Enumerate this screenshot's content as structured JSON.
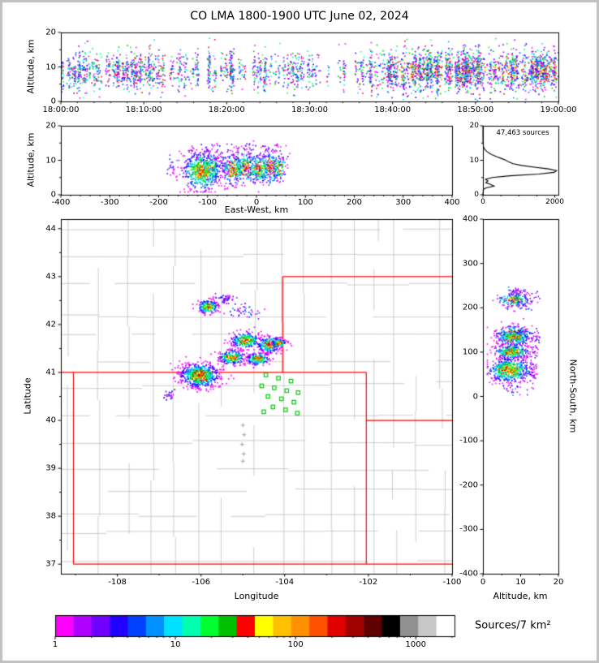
{
  "title": "CO LMA 1800-1900 UTC June 02, 2024",
  "render_seed": 42,
  "grid_seed": 7,
  "colors": {
    "background": "#ffffff",
    "frame_border": "#c0c0c0",
    "axis": "#000000",
    "county_line": "#b8b8b8",
    "state_line": "#ff0000",
    "station": "#00cc00",
    "marker": "#999999",
    "histogram_line": "#000000"
  },
  "colorbar": {
    "label": "Sources/7 km²",
    "tick_labels": [
      "1",
      "10",
      "100",
      "1000"
    ],
    "scale": "log",
    "range": [
      1,
      2100
    ],
    "colors": [
      "#ff00ff",
      "#b000ff",
      "#7000ff",
      "#2000ff",
      "#0040ff",
      "#0090ff",
      "#00e0ff",
      "#00ffb0",
      "#00ff30",
      "#00c000",
      "#ff0000",
      "#ffff00",
      "#ffc000",
      "#ff9000",
      "#ff5000",
      "#e00000",
      "#a00000",
      "#600000",
      "#000000",
      "#909090",
      "#c8c8c8",
      "#ffffff"
    ]
  },
  "chart_data": [
    {
      "id": "time_altitude",
      "type": "scatter",
      "ylabel": "Altitude, km",
      "x_tick_labels": [
        "18:00:00",
        "18:10:00",
        "18:20:00",
        "18:30:00",
        "18:40:00",
        "18:50:00",
        "19:00:00"
      ],
      "x_range_seconds": [
        0,
        3600
      ],
      "y_range": [
        0,
        20
      ],
      "y_tick_values": [
        0,
        10,
        20
      ],
      "y_tick_labels": [
        "0",
        "10",
        "20"
      ],
      "alt_mean_km": 9,
      "alt_spread_km": 2.6,
      "time_density": [
        [
          0,
          0.75
        ],
        [
          300,
          0.65
        ],
        [
          600,
          0.7
        ],
        [
          900,
          0.55
        ],
        [
          1200,
          0.6
        ],
        [
          1500,
          0.5
        ],
        [
          1800,
          0.45
        ],
        [
          2000,
          0.3
        ],
        [
          2200,
          0.55
        ],
        [
          2500,
          0.85
        ],
        [
          2800,
          1.0
        ],
        [
          3600,
          1.0
        ]
      ]
    },
    {
      "id": "eastwest_altitude",
      "type": "scatter",
      "xlabel": "East-West, km",
      "ylabel": "Altitude, km",
      "x_range": [
        -400,
        400
      ],
      "x_tick_values": [
        -400,
        -300,
        -200,
        -100,
        0,
        100,
        200,
        300,
        400
      ],
      "x_tick_labels": [
        "-400",
        "-300",
        "-200",
        "-100",
        "0",
        "100",
        "200",
        "300",
        "400"
      ],
      "y_range": [
        0,
        20
      ],
      "y_tick_values": [
        0,
        10,
        20
      ],
      "y_tick_labels": [
        "0",
        "10",
        "20"
      ]
    },
    {
      "id": "altitude_histogram",
      "type": "line",
      "annotation": "47,463 sources",
      "x_range": [
        0,
        2100
      ],
      "x_tick_values": [
        0,
        2000
      ],
      "x_tick_labels": [
        "0",
        "2000"
      ],
      "y_range": [
        0,
        20
      ],
      "y_tick_values": [
        0,
        10,
        20
      ],
      "y_tick_labels": [
        "0",
        "10",
        "20"
      ],
      "profile_alt_count": [
        [
          0,
          0
        ],
        [
          1.5,
          10
        ],
        [
          2,
          90
        ],
        [
          2.5,
          310
        ],
        [
          3,
          210
        ],
        [
          3.5,
          80
        ],
        [
          4,
          140
        ],
        [
          4.5,
          70
        ],
        [
          5,
          260
        ],
        [
          5.5,
          750
        ],
        [
          6,
          1550
        ],
        [
          6.5,
          1980
        ],
        [
          7,
          2050
        ],
        [
          7.5,
          1820
        ],
        [
          8,
          1430
        ],
        [
          8.5,
          1080
        ],
        [
          9,
          840
        ],
        [
          9.5,
          720
        ],
        [
          10,
          640
        ],
        [
          10.5,
          520
        ],
        [
          11,
          390
        ],
        [
          11.5,
          270
        ],
        [
          12,
          185
        ],
        [
          12.5,
          115
        ],
        [
          13,
          62
        ],
        [
          13.5,
          30
        ],
        [
          14,
          13
        ],
        [
          15,
          4
        ],
        [
          16,
          1
        ],
        [
          20,
          0
        ]
      ]
    },
    {
      "id": "map",
      "type": "scatter",
      "xlabel": "Longitude",
      "ylabel": "Latitude",
      "lon_range": [
        -109.35,
        -100
      ],
      "lat_range": [
        36.8,
        44.2
      ],
      "x_tick_values": [
        -108,
        -106,
        -104,
        -102,
        -100
      ],
      "x_tick_labels": [
        "-108",
        "-106",
        "-104",
        "-102",
        "-100"
      ],
      "y_tick_values": [
        37,
        38,
        39,
        40,
        41,
        42,
        43,
        44
      ],
      "y_tick_labels": [
        "37",
        "38",
        "39",
        "40",
        "41",
        "42",
        "43",
        "44"
      ],
      "projection_center": {
        "lon": -104.7,
        "lat": 40.4
      },
      "km_per_deg_lon": 84,
      "km_per_deg_lat": 111,
      "state_border_segments": [
        [
          -109.05,
          37,
          -109.05,
          41
        ],
        [
          -109.35,
          41,
          -102.05,
          41
        ],
        [
          -104.05,
          41,
          -104.05,
          43
        ],
        [
          -104.05,
          43,
          -100,
          43
        ],
        [
          -102.05,
          37,
          -102.05,
          41
        ],
        [
          -102.05,
          40,
          -100,
          40
        ],
        [
          -109.05,
          37,
          -100,
          37
        ]
      ],
      "storm_clusters": [
        {
          "lon": -105.85,
          "lat": 42.38,
          "rx": 0.13,
          "ry": 0.07,
          "n": 200,
          "core": true,
          "alt_mean": 8,
          "alt_sd": 2.0
        },
        {
          "lon": -105.45,
          "lat": 42.55,
          "rx": 0.1,
          "ry": 0.05,
          "n": 45,
          "core": false,
          "alt_mean": 9,
          "alt_sd": 1.5
        },
        {
          "lon": -105.0,
          "lat": 42.28,
          "rx": 0.22,
          "ry": 0.07,
          "n": 40,
          "core": false,
          "alt_mean": 9,
          "alt_sd": 1.5
        },
        {
          "lon": -104.95,
          "lat": 41.68,
          "rx": 0.18,
          "ry": 0.09,
          "n": 260,
          "core": true,
          "alt_mean": 8,
          "alt_sd": 2.2
        },
        {
          "lon": -104.38,
          "lat": 41.6,
          "rx": 0.15,
          "ry": 0.09,
          "n": 240,
          "core": true,
          "alt_mean": 8,
          "alt_sd": 2.2
        },
        {
          "lon": -104.15,
          "lat": 41.63,
          "rx": 0.09,
          "ry": 0.05,
          "n": 90,
          "core": true,
          "alt_mean": 8,
          "alt_sd": 1.8
        },
        {
          "lon": -105.28,
          "lat": 41.33,
          "rx": 0.16,
          "ry": 0.08,
          "n": 230,
          "core": true,
          "alt_mean": 7.5,
          "alt_sd": 2.2
        },
        {
          "lon": -104.65,
          "lat": 41.3,
          "rx": 0.14,
          "ry": 0.07,
          "n": 190,
          "core": true,
          "alt_mean": 7.5,
          "alt_sd": 2.0
        },
        {
          "lon": -106.05,
          "lat": 40.95,
          "rx": 0.24,
          "ry": 0.13,
          "n": 650,
          "core": true,
          "alt_mean": 7,
          "alt_sd": 2.6
        },
        {
          "lon": -106.78,
          "lat": 40.55,
          "rx": 0.07,
          "ry": 0.05,
          "n": 22,
          "core": false,
          "alt_mean": 8,
          "alt_sd": 1.2
        }
      ],
      "stations": [
        [
          -104.45,
          40.95
        ],
        [
          -104.15,
          40.88
        ],
        [
          -103.85,
          40.82
        ],
        [
          -104.55,
          40.72
        ],
        [
          -104.25,
          40.68
        ],
        [
          -103.95,
          40.62
        ],
        [
          -103.68,
          40.58
        ],
        [
          -104.4,
          40.5
        ],
        [
          -104.08,
          40.45
        ],
        [
          -103.78,
          40.38
        ],
        [
          -104.28,
          40.28
        ],
        [
          -103.98,
          40.22
        ],
        [
          -104.5,
          40.18
        ],
        [
          -103.7,
          40.15
        ]
      ],
      "cross_markers": [
        [
          -105.0,
          39.9
        ],
        [
          -104.97,
          39.7
        ],
        [
          -105.02,
          39.5
        ],
        [
          -104.98,
          39.3
        ],
        [
          -105.0,
          39.15
        ]
      ]
    },
    {
      "id": "northsouth_altitude",
      "type": "scatter",
      "xlabel": "Altitude, km",
      "ylabel": "North-South, km",
      "x_range": [
        0,
        20
      ],
      "x_tick_values": [
        0,
        10,
        20
      ],
      "x_tick_labels": [
        "0",
        "10",
        "20"
      ],
      "y_range": [
        -400,
        400
      ],
      "y_tick_values": [
        400,
        300,
        200,
        100,
        0,
        -100,
        -200,
        -300,
        -400
      ],
      "y_tick_labels": [
        "400",
        "300",
        "200",
        "100",
        "0",
        "-100",
        "-200",
        "-300",
        "-400"
      ]
    }
  ]
}
